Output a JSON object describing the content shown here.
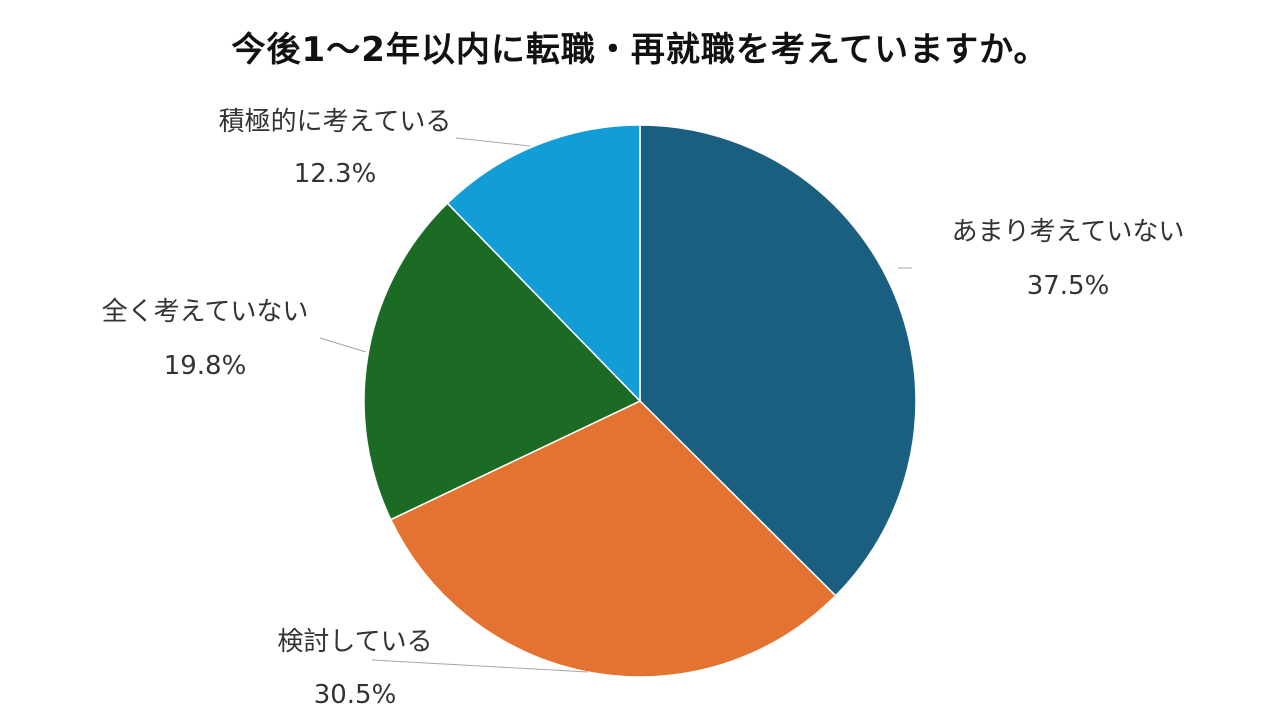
{
  "chart_data": {
    "type": "pie",
    "title": "今後1～2年以内に転職・再就職を考えていますか。",
    "start_angle_deg": 0,
    "direction": "clockwise",
    "legend": "none",
    "slices": [
      {
        "label": "あまり考えていない",
        "value": 37.5,
        "value_text": "37.5%",
        "color": "#1a5f80"
      },
      {
        "label": "検討している",
        "value": 30.5,
        "value_text": "30.5%",
        "color": "#e47332"
      },
      {
        "label": "全く考えていない",
        "value": 19.8,
        "value_text": "19.8%",
        "color": "#1c6b25"
      },
      {
        "label": "積極的に考えている",
        "value": 12.3,
        "value_text": "12.3%",
        "color": "#139dd6"
      }
    ]
  }
}
